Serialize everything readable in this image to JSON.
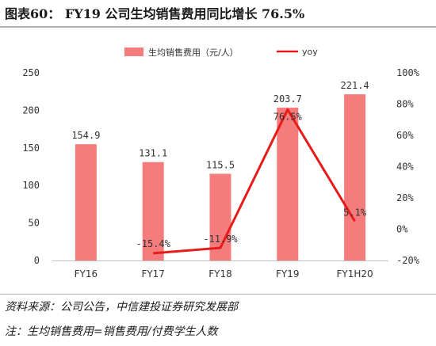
{
  "header": {
    "title": "图表60： FY19 公司生均销售费用同比增长 76.5%"
  },
  "footer": {
    "source": "资料来源：公司公告，中信建投证券研究发展部",
    "note": "注：生均销售费用=销售费用/付费学生人数"
  },
  "chart_data": {
    "type": "bar",
    "categories": [
      "FY16",
      "FY17",
      "FY18",
      "FY19",
      "FY1H20"
    ],
    "series": [
      {
        "name": "生均销售费用（元/人）",
        "kind": "bar",
        "axis": "left",
        "color": "#f47c7c",
        "values": [
          154.9,
          131.1,
          115.5,
          203.7,
          221.4
        ],
        "labels": [
          "154.9",
          "131.1",
          "115.5",
          "203.7",
          "221.4"
        ]
      },
      {
        "name": "yoy",
        "kind": "line",
        "axis": "right",
        "color": "#e81b1b",
        "values": [
          null,
          -15.4,
          -11.9,
          76.5,
          5.1
        ],
        "labels": [
          "",
          "-15.4%",
          "-11.9%",
          "76.5%",
          "5.1%"
        ]
      }
    ],
    "y_left": {
      "min": 0,
      "max": 250,
      "ticks": [
        "0",
        "50",
        "100",
        "150",
        "200",
        "250"
      ]
    },
    "y_right": {
      "min": -20,
      "max": 100,
      "ticks": [
        "-20%",
        "0%",
        "20%",
        "40%",
        "60%",
        "80%",
        "100%"
      ]
    },
    "legend_position": "top"
  }
}
